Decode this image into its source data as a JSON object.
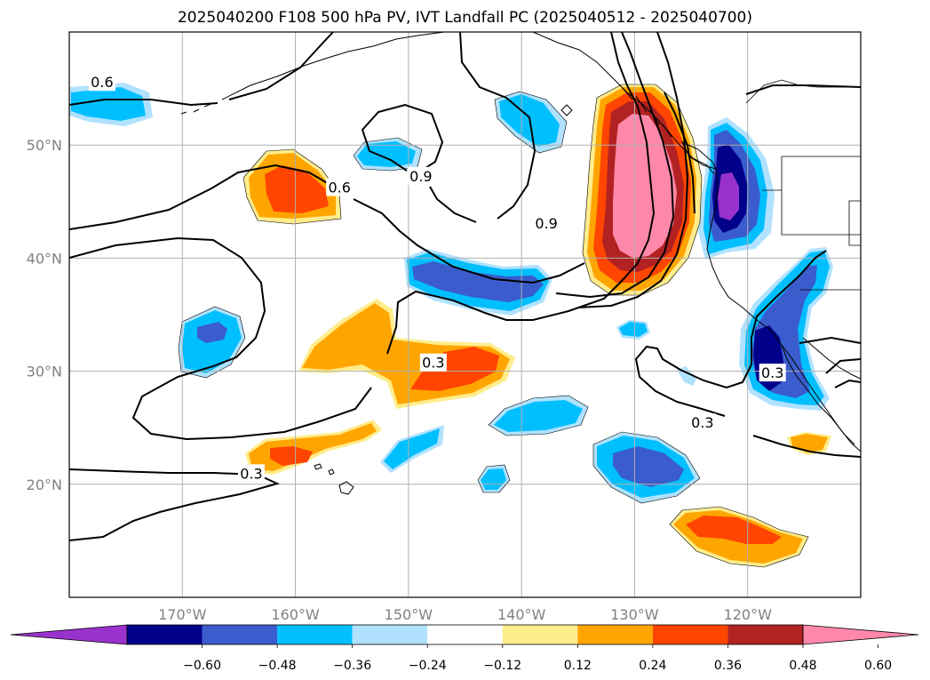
{
  "title": "2025040200 F108 500 hPa PV, IVT Landfall PC (2025040512 - 2025040700)",
  "map": {
    "projection": "PlateCarree",
    "extent": {
      "lon_min": -180,
      "lon_max": -110,
      "lat_min": 10,
      "lat_max": 60
    },
    "gridlines": true,
    "lon_ticks": [
      {
        "value": -170,
        "label": "170°W"
      },
      {
        "value": -160,
        "label": "160°W"
      },
      {
        "value": -150,
        "label": "150°W"
      },
      {
        "value": -140,
        "label": "140°W"
      },
      {
        "value": -130,
        "label": "130°W"
      },
      {
        "value": -120,
        "label": "120°W"
      }
    ],
    "lat_ticks": [
      {
        "value": 20,
        "label": "20°N"
      },
      {
        "value": 30,
        "label": "30°N"
      },
      {
        "value": 40,
        "label": "40°N"
      },
      {
        "value": 50,
        "label": "50°N"
      }
    ],
    "contour_labels": [
      {
        "text": "0.6",
        "lon": -177.1,
        "lat": 55.5
      },
      {
        "text": "0.6",
        "lon": -156.1,
        "lat": 46.2
      },
      {
        "text": "0.9",
        "lon": -148.9,
        "lat": 47.2
      },
      {
        "text": "0.9",
        "lon": -137.8,
        "lat": 43.0
      },
      {
        "text": "0.3",
        "lon": -147.8,
        "lat": 30.7
      },
      {
        "text": "0.3",
        "lon": -163.9,
        "lat": 20.9
      },
      {
        "text": "0.3",
        "lon": -124.0,
        "lat": 25.4
      },
      {
        "text": "0.3",
        "lon": -117.8,
        "lat": 29.8
      }
    ]
  },
  "colorbar": {
    "tick_labels": [
      "−0.60",
      "−0.48",
      "−0.36",
      "−0.24",
      "−0.12",
      "0.12",
      "0.24",
      "0.36",
      "0.48",
      "0.60"
    ],
    "colors": [
      "#9932cc",
      "#00008b",
      "#3a5ccc",
      "#00bfff",
      "#b0e2ff",
      "#ffffff",
      "#ffec8b",
      "#ffa500",
      "#ff4500",
      "#b22222",
      "#ff88aa"
    ],
    "extend": "both"
  },
  "colors": {
    "light_blue": "#b0e2ff",
    "sky_blue": "#00bfff",
    "royal_blue": "#3a5ccc",
    "navy": "#00008b",
    "purple": "#9932cc",
    "light_yellow": "#ffec8b",
    "orange": "#ffa500",
    "orange_red": "#ff4500",
    "firebrick": "#b22222",
    "pink": "#ff88aa"
  }
}
